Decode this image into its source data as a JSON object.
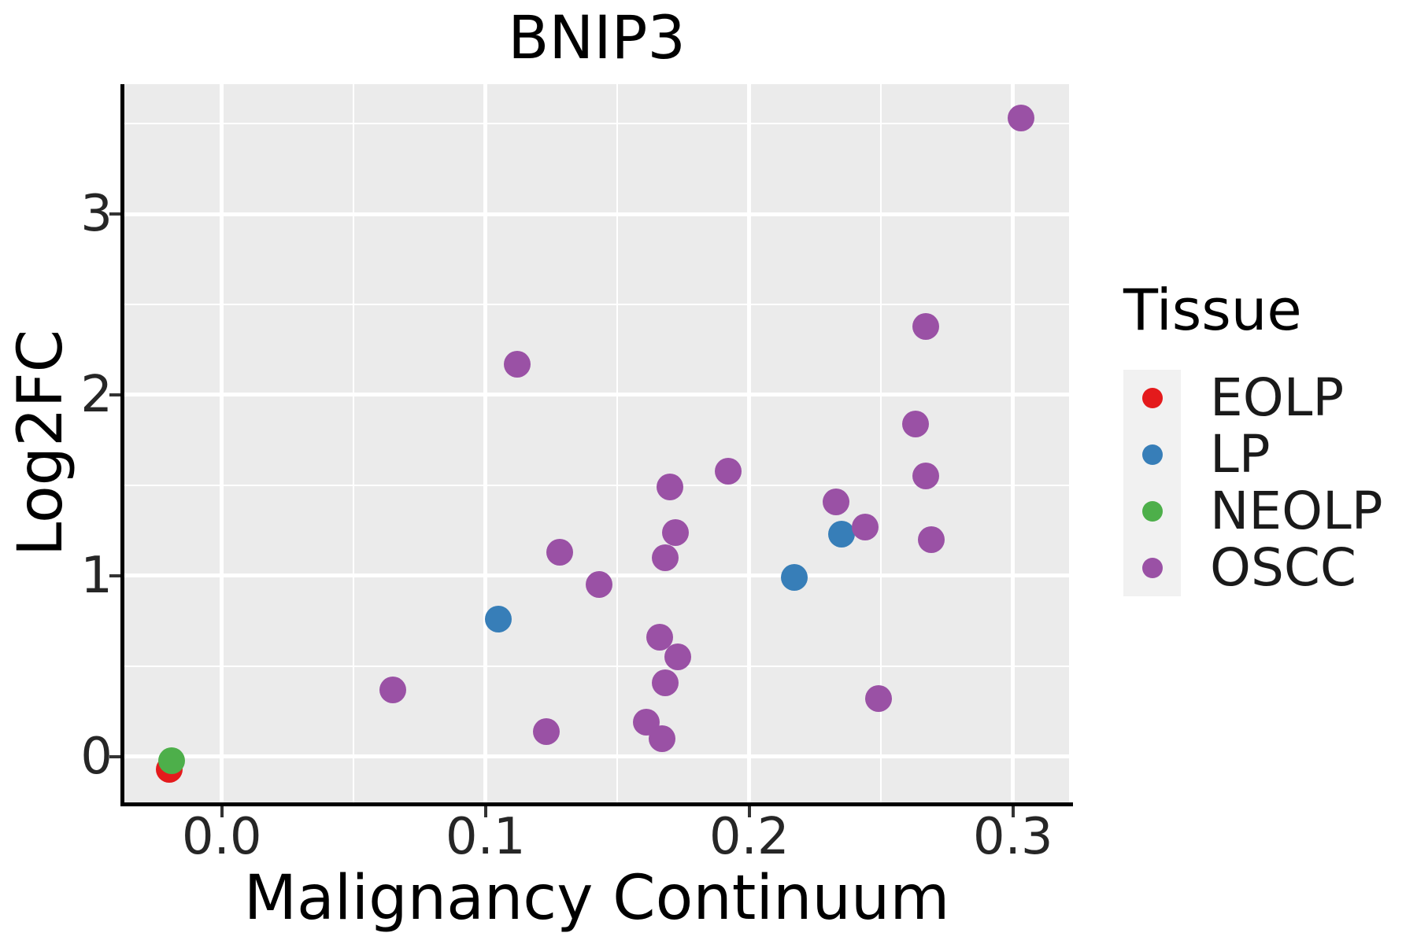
{
  "chart_data": {
    "type": "scatter",
    "title": "BNIP3",
    "xlabel": "Malignancy Continuum",
    "ylabel": "Log2FC",
    "legend_title": "Tissue",
    "legend_position": "right",
    "grid": "white major and minor gridlines on grey panel",
    "x_axis": {
      "min": -0.03693,
      "max": 0.32128,
      "major_ticks": [
        0.0,
        0.1,
        0.2,
        0.3
      ],
      "major_tick_labels": [
        "0.0",
        "0.1",
        "0.2",
        "0.3"
      ],
      "minor_ticks": [
        0.05,
        0.15,
        0.25
      ]
    },
    "y_axis": {
      "min": -0.2522,
      "max": 3.7174,
      "major_ticks": [
        0,
        1,
        2,
        3
      ],
      "major_tick_labels": [
        "0",
        "1",
        "2",
        "3"
      ],
      "minor_ticks": [
        0.5,
        1.5,
        2.5,
        3.5
      ]
    },
    "series": [
      {
        "name": "EOLP",
        "color": "#E41A1C",
        "points": [
          [
            -0.02,
            -0.07
          ]
        ]
      },
      {
        "name": "LP",
        "color": "#377EB8",
        "points": [
          [
            0.105,
            0.76
          ],
          [
            0.217,
            0.99
          ],
          [
            0.235,
            1.23
          ]
        ]
      },
      {
        "name": "NEOLP",
        "color": "#4DAF4A",
        "points": [
          [
            -0.019,
            -0.02
          ]
        ]
      },
      {
        "name": "OSCC",
        "color": "#9A51A5",
        "points": [
          [
            0.065,
            0.37
          ],
          [
            0.112,
            2.17
          ],
          [
            0.123,
            0.14
          ],
          [
            0.128,
            1.13
          ],
          [
            0.143,
            0.95
          ],
          [
            0.161,
            0.19
          ],
          [
            0.166,
            0.66
          ],
          [
            0.167,
            0.1
          ],
          [
            0.168,
            0.41
          ],
          [
            0.168,
            1.1
          ],
          [
            0.17,
            1.49
          ],
          [
            0.172,
            1.24
          ],
          [
            0.173,
            0.55
          ],
          [
            0.192,
            1.58
          ],
          [
            0.233,
            1.41
          ],
          [
            0.244,
            1.27
          ],
          [
            0.249,
            0.32
          ],
          [
            0.263,
            1.84
          ],
          [
            0.267,
            2.38
          ],
          [
            0.267,
            1.55
          ],
          [
            0.269,
            1.2
          ],
          [
            0.303,
            3.53
          ]
        ]
      }
    ]
  },
  "styles": {
    "panel_bg": "#EBEBEB",
    "grid_color": "#FFFFFF",
    "axis_line_color": "#000000",
    "tick_mark_color": "#333333",
    "tick_label_color": "#262626",
    "text_color": "#000000",
    "legend_key_bg": "#F1F1F1"
  }
}
